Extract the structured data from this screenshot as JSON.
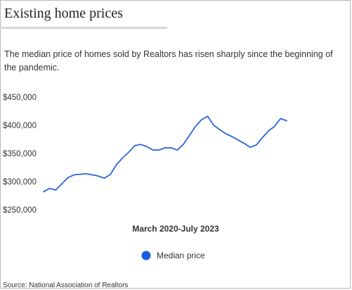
{
  "title": "Existing home prices",
  "subtitle": "The median price of homes sold by Realtors has risen sharply since the beginning of the pandemic.",
  "source": "Source: National Association of Realtors",
  "colors": {
    "line": "#2a66d6",
    "legend_dot": "#1a5ee0"
  },
  "chart_data": {
    "type": "line",
    "title": "Existing home prices",
    "xlabel": "March 2020-July 2023",
    "ylabel": "",
    "ylim": [
      250000,
      450000
    ],
    "yticks": [
      250000,
      300000,
      350000,
      400000,
      450000
    ],
    "ytick_labels": [
      "$250,000",
      "$300,000",
      "$350,000",
      "$400,000",
      "$450,000"
    ],
    "grid": false,
    "legend": "bottom-center",
    "x": [
      "2020-03",
      "2020-04",
      "2020-05",
      "2020-06",
      "2020-07",
      "2020-08",
      "2020-09",
      "2020-10",
      "2020-11",
      "2020-12",
      "2021-01",
      "2021-02",
      "2021-03",
      "2021-04",
      "2021-05",
      "2021-06",
      "2021-07",
      "2021-08",
      "2021-09",
      "2021-10",
      "2021-11",
      "2021-12",
      "2022-01",
      "2022-02",
      "2022-03",
      "2022-04",
      "2022-05",
      "2022-06",
      "2022-07",
      "2022-08",
      "2022-09",
      "2022-10",
      "2022-11",
      "2022-12",
      "2023-01",
      "2023-02",
      "2023-03",
      "2023-04",
      "2023-05",
      "2023-06",
      "2023-07"
    ],
    "series": [
      {
        "name": "Median price",
        "values": [
          282000,
          288000,
          285000,
          296000,
          307000,
          312000,
          313000,
          314000,
          312000,
          310000,
          306000,
          313000,
          330000,
          342000,
          352000,
          364000,
          366000,
          362000,
          356000,
          356000,
          360000,
          360000,
          356000,
          366000,
          382000,
          398000,
          410000,
          416000,
          400000,
          392000,
          385000,
          380000,
          374000,
          368000,
          361000,
          365000,
          378000,
          390000,
          398000,
          412000,
          408000
        ]
      }
    ]
  }
}
